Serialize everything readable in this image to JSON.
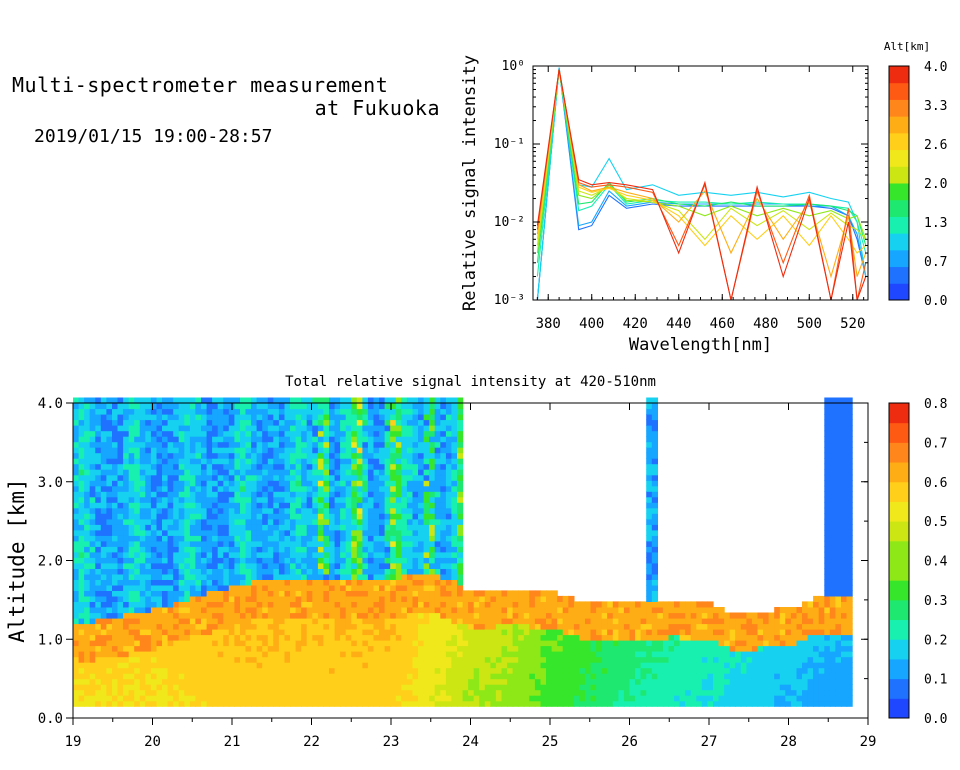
{
  "header": {
    "title_line1": "Multi-spectrometer measurement",
    "title_line2": "at Fukuoka",
    "datetime": "2019/01/15 19:00-28:57"
  },
  "colors": {
    "scale": [
      "#1f47ff",
      "#1e72ff",
      "#16a5ff",
      "#16d2f0",
      "#18f0b0",
      "#1ee870",
      "#36e62a",
      "#8ee818",
      "#cce614",
      "#f0e81a",
      "#ffcf1a",
      "#ffad14",
      "#ff861a",
      "#ff5a14",
      "#ee2c10"
    ]
  },
  "chart_data": [
    {
      "type": "line",
      "xlabel": "Wavelength[nm]",
      "ylabel": "Relative signal intensity",
      "xlim": [
        373,
        527
      ],
      "ylim": [
        0.001,
        1
      ],
      "yscale": "log",
      "xticks": [
        "380",
        "400",
        "420",
        "440",
        "460",
        "480",
        "500",
        "520"
      ],
      "yticks": [
        "10⁻³",
        "10⁻²",
        "10⁻¹",
        "10⁰"
      ],
      "colorbar": {
        "label": "Alt[km]",
        "ticks": [
          "0.0",
          "0.7",
          "1.3",
          "2.0",
          "2.6",
          "3.3",
          "4.0"
        ],
        "range": [
          0,
          4
        ]
      },
      "x": [
        375,
        385,
        394,
        400,
        408,
        416,
        428,
        440,
        452,
        464,
        476,
        488,
        500,
        510,
        518,
        522,
        526
      ],
      "series": [
        {
          "alt": 0.3,
          "values": [
            0.001,
            0.95,
            0.008,
            0.009,
            0.022,
            0.015,
            0.017,
            0.016,
            0.016,
            0.016,
            0.016,
            0.016,
            0.016,
            0.015,
            0.012,
            0.006,
            0.002
          ]
        },
        {
          "alt": 0.6,
          "values": [
            0.001,
            0.95,
            0.009,
            0.01,
            0.025,
            0.016,
            0.018,
            0.017,
            0.017,
            0.017,
            0.017,
            0.017,
            0.016,
            0.016,
            0.012,
            0.007,
            0.002
          ]
        },
        {
          "alt": 0.9,
          "values": [
            0.001,
            0.95,
            0.03,
            0.028,
            0.065,
            0.026,
            0.03,
            0.022,
            0.024,
            0.022,
            0.024,
            0.021,
            0.024,
            0.02,
            0.018,
            0.01,
            0.002
          ]
        },
        {
          "alt": 1.2,
          "values": [
            0.002,
            0.9,
            0.014,
            0.016,
            0.03,
            0.017,
            0.019,
            0.018,
            0.018,
            0.017,
            0.018,
            0.017,
            0.017,
            0.016,
            0.015,
            0.01,
            0.004
          ]
        },
        {
          "alt": 1.5,
          "values": [
            0.003,
            0.9,
            0.017,
            0.018,
            0.032,
            0.018,
            0.02,
            0.017,
            0.016,
            0.018,
            0.016,
            0.016,
            0.017,
            0.016,
            0.014,
            0.012,
            0.005
          ]
        },
        {
          "alt": 1.9,
          "values": [
            0.004,
            0.9,
            0.022,
            0.02,
            0.03,
            0.019,
            0.018,
            0.016,
            0.012,
            0.016,
            0.012,
            0.015,
            0.012,
            0.014,
            0.011,
            0.012,
            0.006
          ]
        },
        {
          "alt": 2.3,
          "values": [
            0.005,
            0.9,
            0.025,
            0.022,
            0.028,
            0.02,
            0.018,
            0.014,
            0.006,
            0.015,
            0.009,
            0.014,
            0.008,
            0.013,
            0.009,
            0.008,
            0.006
          ]
        },
        {
          "alt": 2.7,
          "values": [
            0.006,
            0.9,
            0.028,
            0.024,
            0.027,
            0.022,
            0.019,
            0.012,
            0.005,
            0.012,
            0.006,
            0.012,
            0.005,
            0.012,
            0.006,
            0.004,
            0.005
          ]
        },
        {
          "alt": 3.1,
          "values": [
            0.007,
            0.9,
            0.03,
            0.025,
            0.028,
            0.024,
            0.02,
            0.01,
            0.025,
            0.004,
            0.02,
            0.006,
            0.018,
            0.002,
            0.012,
            0.002,
            0.004
          ]
        },
        {
          "alt": 3.5,
          "values": [
            0.008,
            0.9,
            0.032,
            0.028,
            0.03,
            0.028,
            0.024,
            0.005,
            0.03,
            0.001,
            0.025,
            0.003,
            0.022,
            0.001,
            0.015,
            0.001,
            0.003
          ]
        },
        {
          "alt": 3.9,
          "values": [
            0.009,
            0.9,
            0.035,
            0.03,
            0.032,
            0.03,
            0.026,
            0.004,
            0.032,
            0.001,
            0.028,
            0.002,
            0.02,
            0.001,
            0.01,
            0.001,
            0.002
          ]
        }
      ]
    },
    {
      "type": "heatmap",
      "title": "Total relative signal intensity at 420-510nm",
      "ylabel": "Altitude [km]",
      "xlabel": "",
      "xlim": [
        19,
        29
      ],
      "ylim": [
        0,
        4
      ],
      "xticks": [
        "19",
        "20",
        "21",
        "22",
        "23",
        "24",
        "25",
        "26",
        "27",
        "28",
        "29"
      ],
      "yticks": [
        "0.0",
        "1.0",
        "2.0",
        "3.0",
        "4.0"
      ],
      "colorbar": {
        "ticks": [
          "0.0",
          "0.1",
          "0.2",
          "0.3",
          "0.4",
          "0.5",
          "0.6",
          "0.7",
          "0.8"
        ],
        "range": [
          0,
          0.8
        ]
      },
      "data_x_range": [
        19,
        28.8
      ],
      "data_y_range": [
        0.15,
        4.0
      ],
      "boundary_layer_top": [
        [
          19,
          1.0
        ],
        [
          19.5,
          1.1
        ],
        [
          20,
          1.2
        ],
        [
          20.5,
          1.35
        ],
        [
          21,
          1.5
        ],
        [
          21.5,
          1.6
        ],
        [
          22,
          1.6
        ],
        [
          22.5,
          1.6
        ],
        [
          23,
          1.6
        ],
        [
          23.5,
          1.65
        ],
        [
          24,
          1.45
        ],
        [
          24.5,
          1.5
        ],
        [
          25,
          1.45
        ],
        [
          25.5,
          1.3
        ],
        [
          26,
          1.3
        ],
        [
          26.3,
          1.3
        ],
        [
          26.5,
          1.35
        ],
        [
          27,
          1.3
        ],
        [
          27.3,
          1.15
        ],
        [
          27.6,
          1.2
        ],
        [
          28,
          1.25
        ],
        [
          28.4,
          1.4
        ],
        [
          28.8,
          1.4
        ]
      ],
      "surface_intensity": [
        [
          19,
          0.52
        ],
        [
          20,
          0.52
        ],
        [
          21,
          0.55
        ],
        [
          22,
          0.55
        ],
        [
          23,
          0.55
        ],
        [
          23.5,
          0.48
        ],
        [
          24,
          0.42
        ],
        [
          24.5,
          0.4
        ],
        [
          25,
          0.34
        ],
        [
          25.5,
          0.3
        ],
        [
          26,
          0.25
        ],
        [
          26.5,
          0.22
        ],
        [
          27,
          0.2
        ],
        [
          27.5,
          0.17
        ],
        [
          28,
          0.15
        ],
        [
          28.5,
          0.12
        ],
        [
          28.8,
          0.12
        ]
      ],
      "cloud_blank_region": {
        "x": [
          23.9,
          28.4
        ],
        "y_from_boundary_to": 4.0
      }
    }
  ]
}
